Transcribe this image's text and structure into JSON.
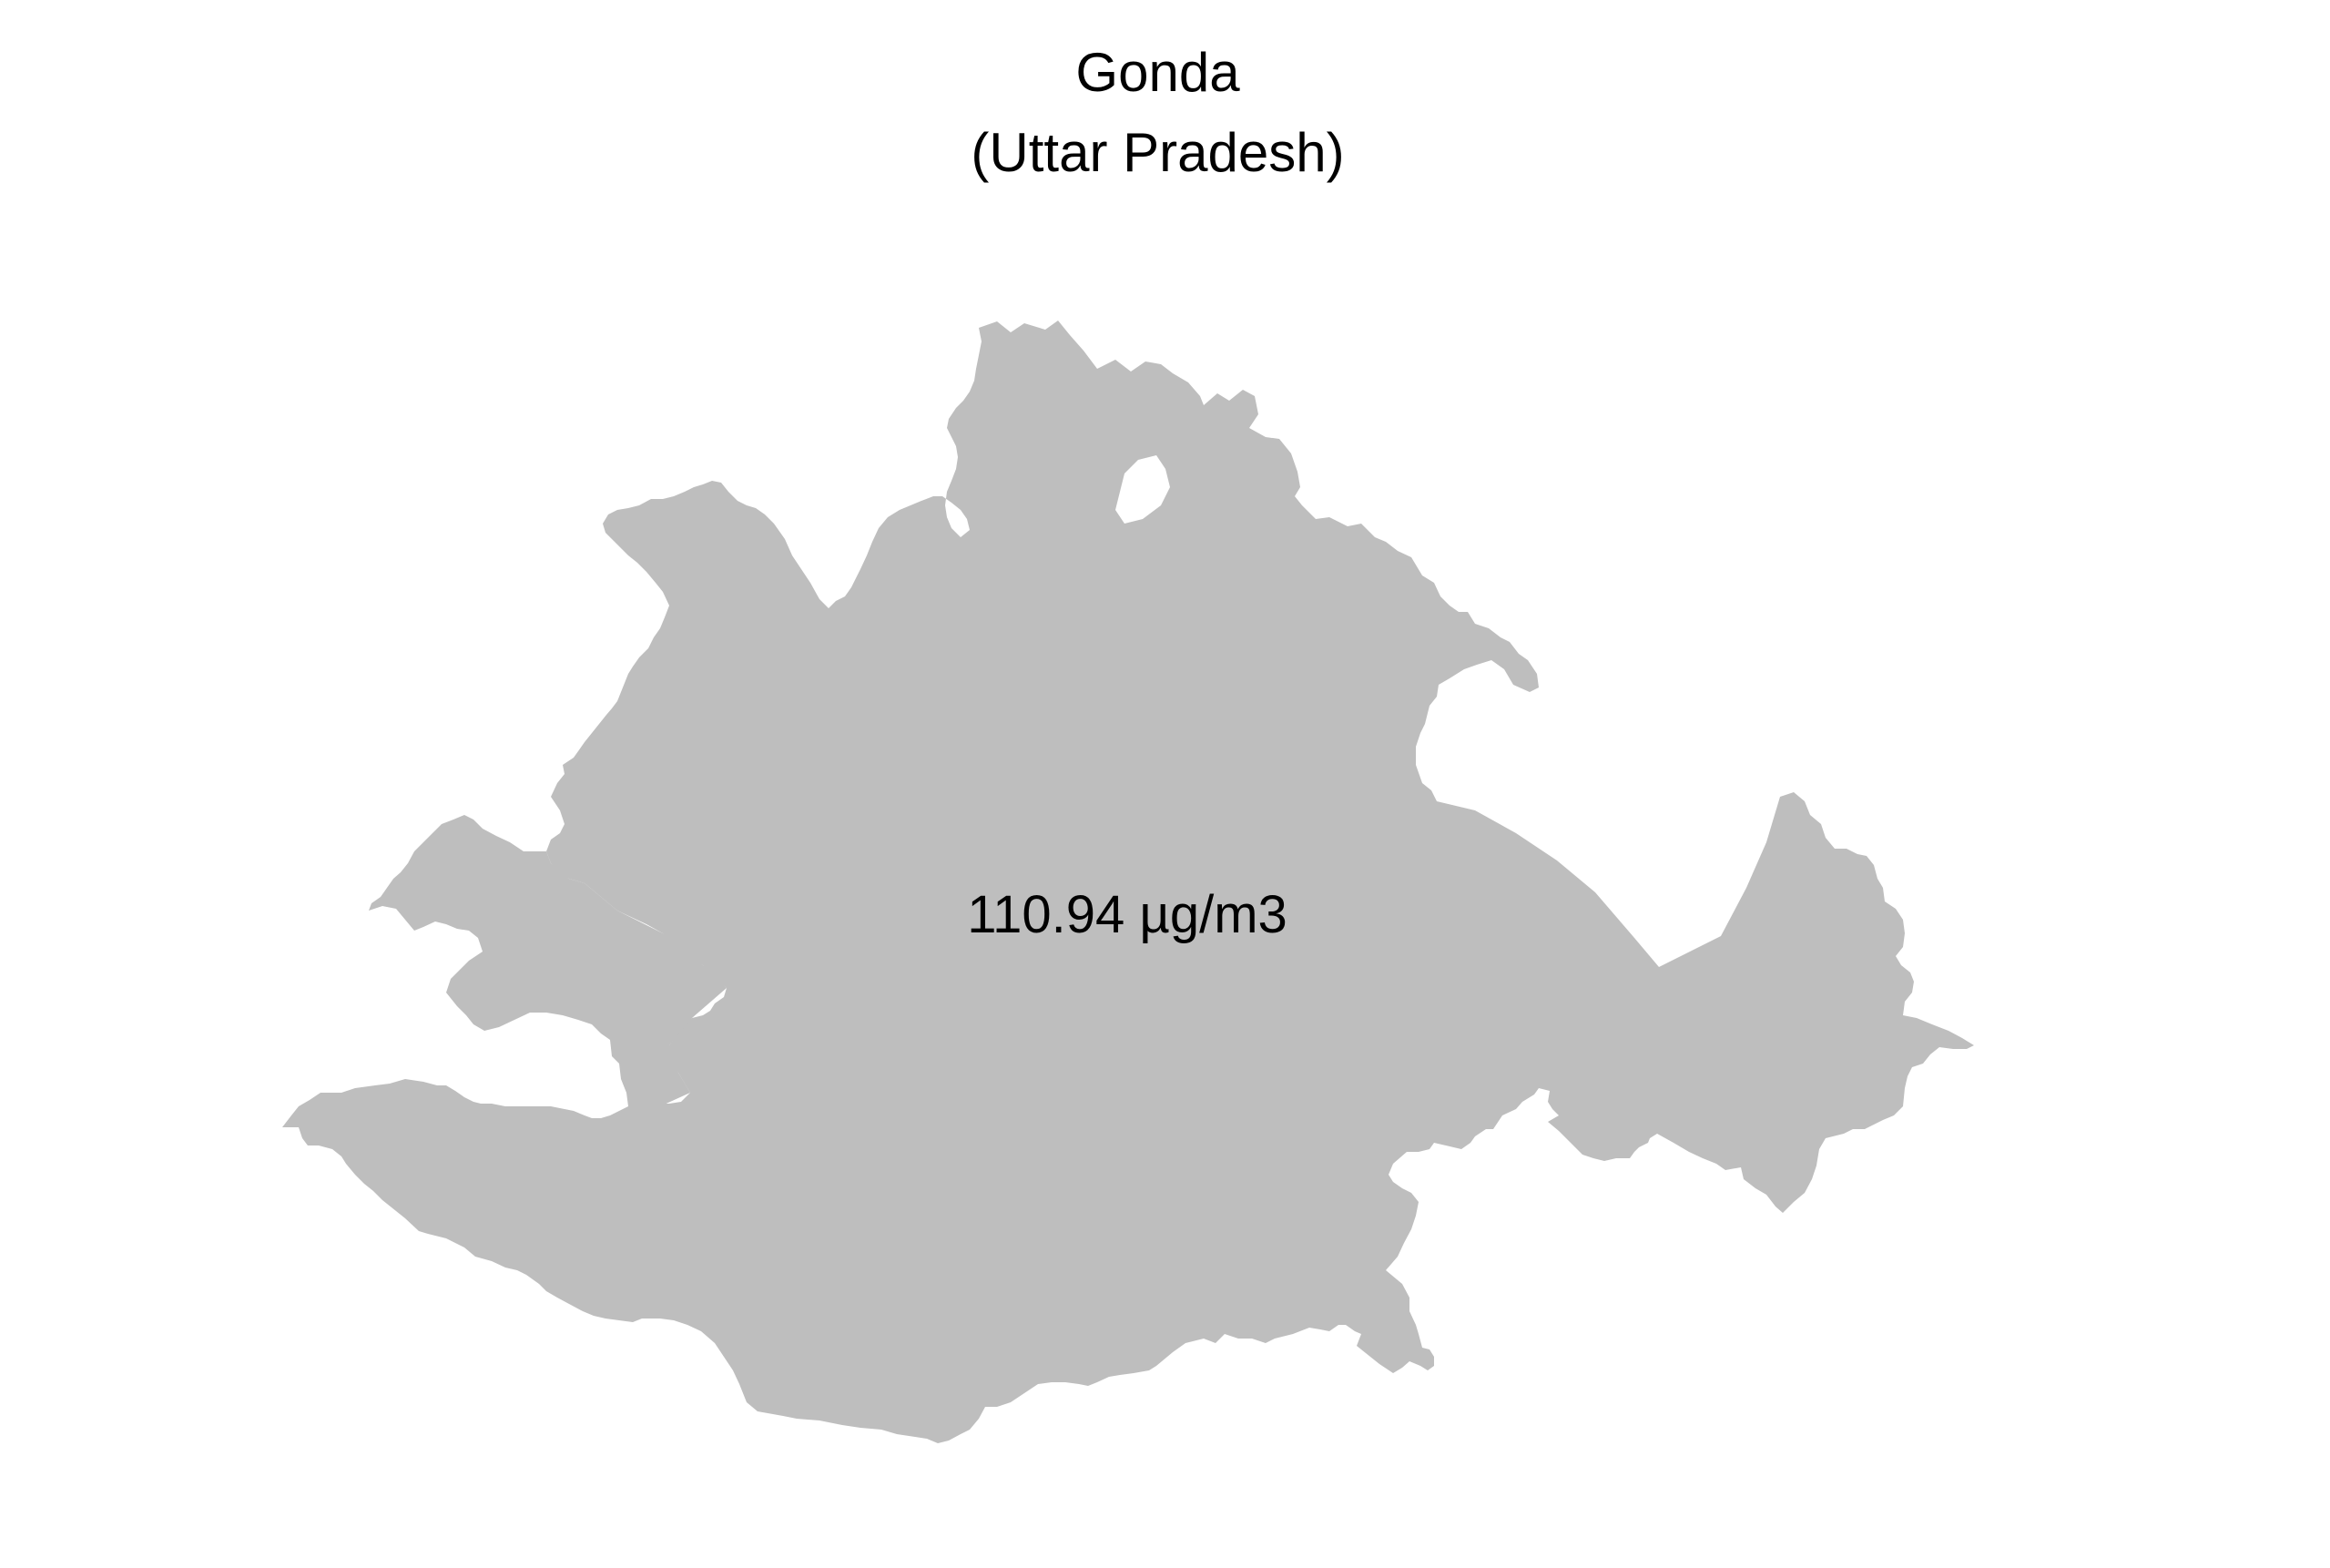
{
  "map": {
    "title": "Gonda",
    "subtitle": "(Uttar Pradesh)",
    "value_label": "110.94 µg/m3",
    "fill_color": "#bebebe",
    "background_color": "#ffffff"
  }
}
